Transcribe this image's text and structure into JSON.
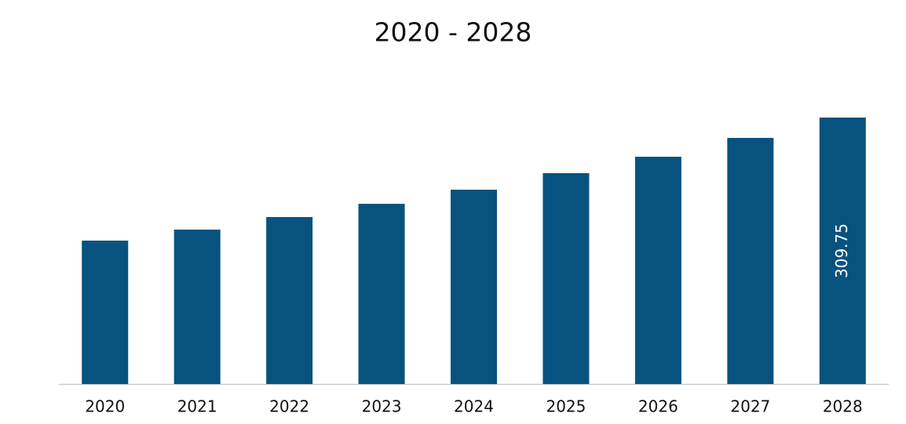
{
  "chart_data": {
    "type": "bar",
    "title": "2020 - 2028",
    "categories": [
      "2020",
      "2021",
      "2022",
      "2023",
      "2024",
      "2025",
      "2026",
      "2027",
      "2028"
    ],
    "values": [
      166.7,
      179.5,
      194.1,
      209.5,
      225.9,
      245.1,
      264.2,
      286.1,
      309.75
    ],
    "value_labels": [
      null,
      null,
      null,
      null,
      null,
      null,
      null,
      null,
      "309.75"
    ],
    "color": "#08527f"
  }
}
